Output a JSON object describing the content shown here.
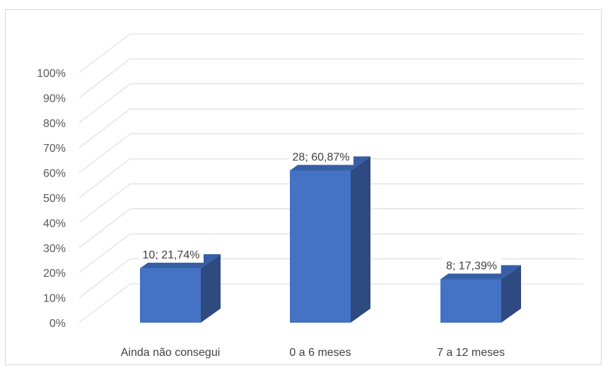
{
  "chart_data": {
    "type": "bar",
    "style": "3d-column",
    "categories": [
      "Ainda não consegui",
      "0 a 6 meses",
      "7 a 12 meses"
    ],
    "values": [
      21.74,
      60.87,
      17.39
    ],
    "counts": [
      10,
      28,
      8
    ],
    "data_labels": [
      "10; 21,74%",
      "28; 60,87%",
      "8; 17,39%"
    ],
    "y_ticks": [
      "0%",
      "10%",
      "20%",
      "30%",
      "40%",
      "50%",
      "60%",
      "70%",
      "80%",
      "90%",
      "100%"
    ],
    "ylim": [
      0,
      100
    ],
    "title": "",
    "xlabel": "",
    "ylabel": "",
    "grid": true,
    "legend": "none",
    "colors": {
      "bar_front": "#4472c4",
      "bar_side": "#2e4a80",
      "bar_top": "#365fa6",
      "grid": "#d9d9d9",
      "frame": "#d9d9d9"
    }
  }
}
